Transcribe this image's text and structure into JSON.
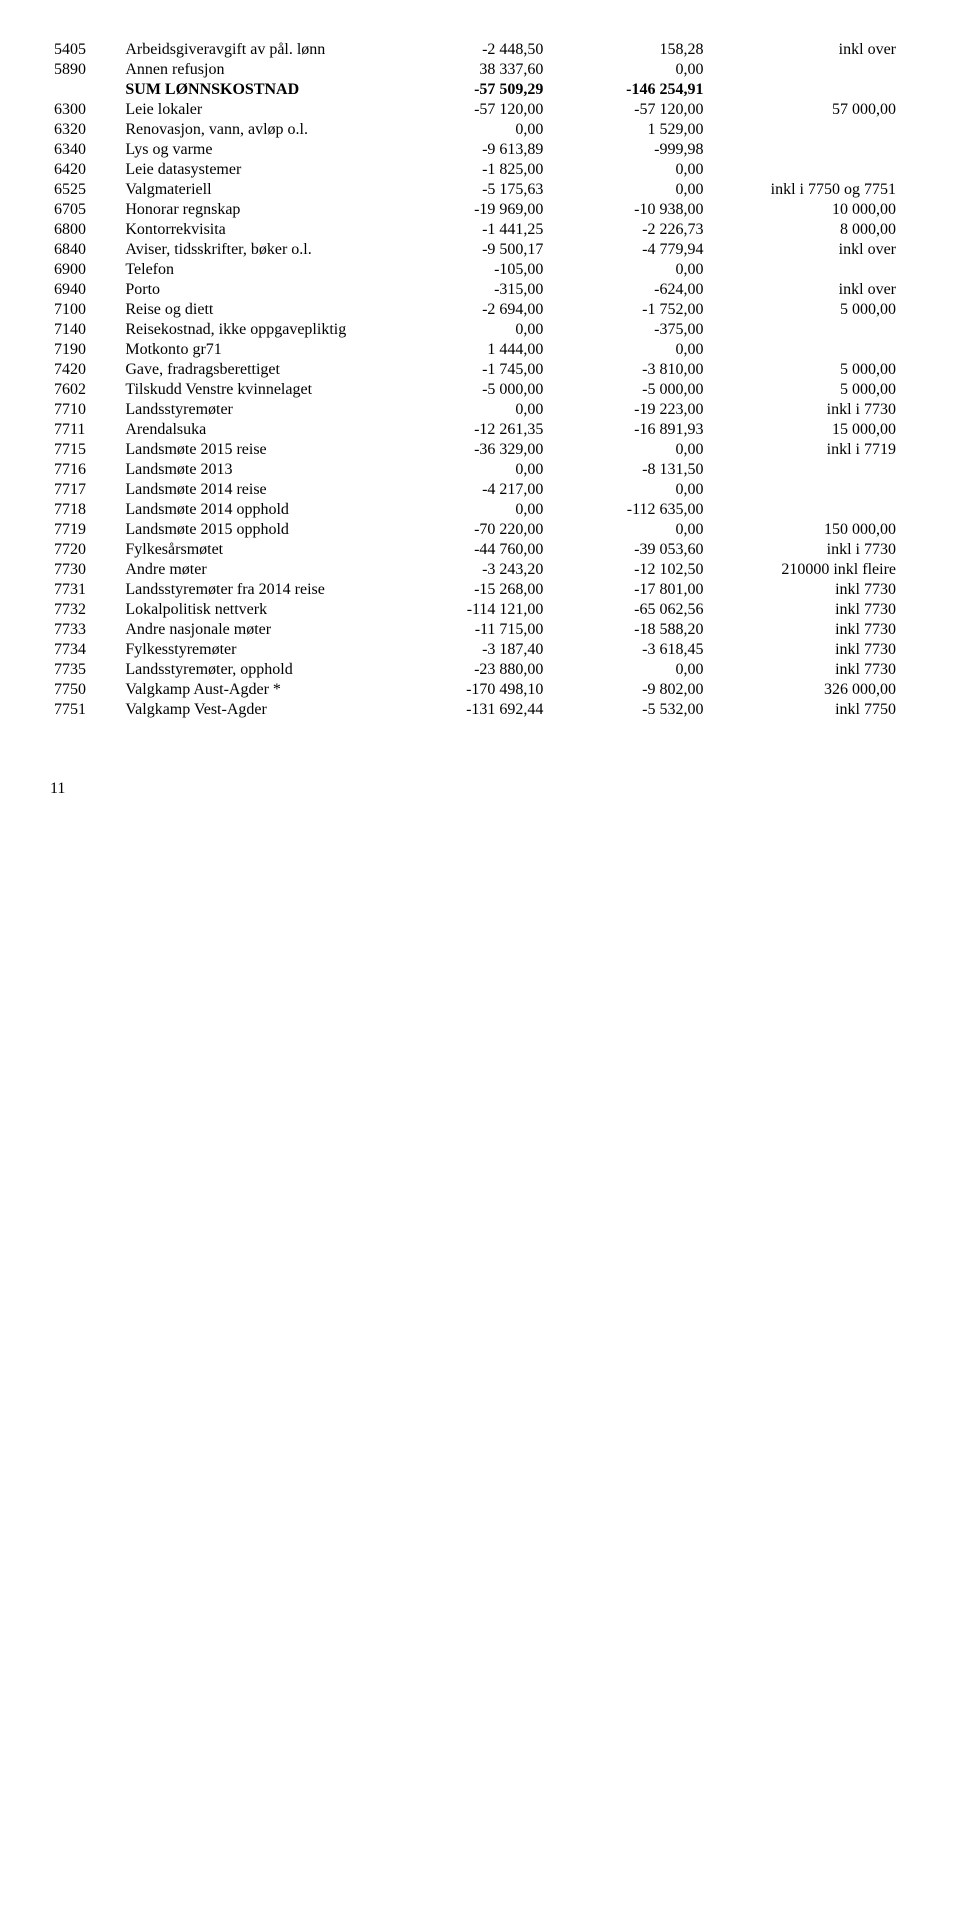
{
  "rows": [
    {
      "code": "5405",
      "desc": "Arbeidsgiveravgift av pål. lønn",
      "v1": "-2 448,50",
      "v2": "158,28",
      "note": "inkl over"
    },
    {
      "code": "5890",
      "desc": "Annen refusjon",
      "v1": "38 337,60",
      "v2": "0,00",
      "note": ""
    },
    {
      "code": "",
      "desc": "SUM LØNNSKOSTNAD",
      "v1": "-57 509,29",
      "v2": "-146 254,91",
      "note": "",
      "bold": true
    },
    {
      "code": "6300",
      "desc": "Leie lokaler",
      "v1": "-57 120,00",
      "v2": "-57 120,00",
      "note": "57 000,00"
    },
    {
      "code": "6320",
      "desc": "Renovasjon, vann, avløp o.l.",
      "v1": "0,00",
      "v2": "1 529,00",
      "note": ""
    },
    {
      "code": "6340",
      "desc": "Lys og varme",
      "v1": "-9 613,89",
      "v2": "-999,98",
      "note": ""
    },
    {
      "code": "6420",
      "desc": "Leie datasystemer",
      "v1": "-1 825,00",
      "v2": "0,00",
      "note": ""
    },
    {
      "code": "6525",
      "desc": "Valgmateriell",
      "v1": "-5 175,63",
      "v2": "0,00",
      "note": "inkl i 7750 og 7751"
    },
    {
      "code": "6705",
      "desc": "Honorar regnskap",
      "v1": "-19 969,00",
      "v2": "-10 938,00",
      "note": "10 000,00"
    },
    {
      "code": "6800",
      "desc": "Kontorrekvisita",
      "v1": "-1 441,25",
      "v2": "-2 226,73",
      "note": "8 000,00"
    },
    {
      "code": "6840",
      "desc": "Aviser, tidsskrifter, bøker o.l.",
      "v1": "-9 500,17",
      "v2": "-4 779,94",
      "note": "inkl over"
    },
    {
      "code": "6900",
      "desc": "Telefon",
      "v1": "-105,00",
      "v2": "0,00",
      "note": ""
    },
    {
      "code": "6940",
      "desc": "Porto",
      "v1": "-315,00",
      "v2": "-624,00",
      "note": "inkl over"
    },
    {
      "code": "7100",
      "desc": "Reise og diett",
      "v1": "-2 694,00",
      "v2": "-1 752,00",
      "note": "5 000,00"
    },
    {
      "code": "7140",
      "desc": "Reisekostnad, ikke oppgavepliktig",
      "v1": "0,00",
      "v2": "-375,00",
      "note": ""
    },
    {
      "code": "7190",
      "desc": "Motkonto gr71",
      "v1": "1 444,00",
      "v2": "0,00",
      "note": ""
    },
    {
      "code": "7420",
      "desc": "Gave, fradragsberettiget",
      "v1": "-1 745,00",
      "v2": "-3 810,00",
      "note": "5 000,00"
    },
    {
      "code": "7602",
      "desc": "Tilskudd Venstre kvinnelaget",
      "v1": "-5 000,00",
      "v2": "-5 000,00",
      "note": "5 000,00"
    },
    {
      "code": "7710",
      "desc": "Landsstyremøter",
      "v1": "0,00",
      "v2": "-19 223,00",
      "note": "inkl i 7730"
    },
    {
      "code": "7711",
      "desc": "Arendalsuka",
      "v1": "-12 261,35",
      "v2": "-16 891,93",
      "note": "15 000,00"
    },
    {
      "code": "7715",
      "desc": "Landsmøte 2015 reise",
      "v1": "-36 329,00",
      "v2": "0,00",
      "note": "inkl i 7719"
    },
    {
      "code": "7716",
      "desc": "Landsmøte 2013",
      "v1": "0,00",
      "v2": "-8 131,50",
      "note": ""
    },
    {
      "code": "7717",
      "desc": "Landsmøte 2014 reise",
      "v1": "-4 217,00",
      "v2": "0,00",
      "note": ""
    },
    {
      "code": "7718",
      "desc": "Landsmøte 2014 opphold",
      "v1": "0,00",
      "v2": "-112 635,00",
      "note": ""
    },
    {
      "code": "7719",
      "desc": "Landsmøte 2015 opphold",
      "v1": "-70 220,00",
      "v2": "0,00",
      "note": "150 000,00"
    },
    {
      "code": "7720",
      "desc": "Fylkesårsmøtet",
      "v1": "-44 760,00",
      "v2": "-39 053,60",
      "note": "inkl i 7730"
    },
    {
      "code": "7730",
      "desc": "Andre møter",
      "v1": "-3 243,20",
      "v2": "-12 102,50",
      "note": "210000 inkl fleire"
    },
    {
      "code": "7731",
      "desc": "Landsstyremøter fra 2014 reise",
      "v1": "-15 268,00",
      "v2": "-17 801,00",
      "note": "inkl 7730"
    },
    {
      "code": "7732",
      "desc": "Lokalpolitisk nettverk",
      "v1": "-114 121,00",
      "v2": "-65 062,56",
      "note": "inkl 7730"
    },
    {
      "code": "7733",
      "desc": "Andre nasjonale møter",
      "v1": "-11 715,00",
      "v2": "-18 588,20",
      "note": "inkl 7730"
    },
    {
      "code": "7734",
      "desc": "Fylkesstyremøter",
      "v1": "-3 187,40",
      "v2": "-3 618,45",
      "note": "inkl 7730"
    },
    {
      "code": "7735",
      "desc": "Landsstyremøter, opphold",
      "v1": "-23 880,00",
      "v2": "0,00",
      "note": "inkl 7730"
    },
    {
      "code": "7750",
      "desc": "Valgkamp Aust-Agder *",
      "v1": "-170 498,10",
      "v2": "-9 802,00",
      "note": "326 000,00"
    },
    {
      "code": "7751",
      "desc": "Valgkamp Vest-Agder",
      "v1": "-131 692,44",
      "v2": "-5 532,00",
      "note": "inkl 7750"
    }
  ],
  "pageNumber": "11"
}
